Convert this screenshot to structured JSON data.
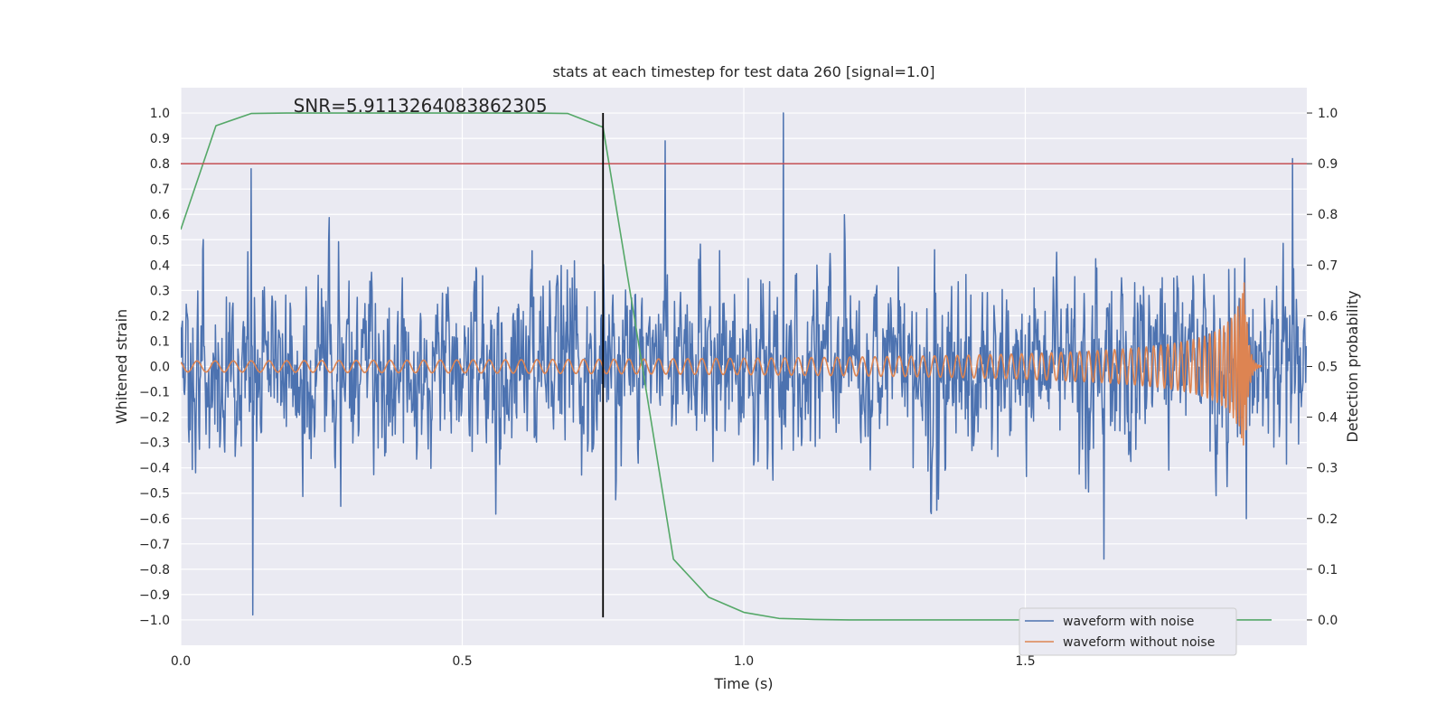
{
  "chart_data": {
    "type": "line",
    "title": "stats at each timestep for test data 260 [signal=1.0]",
    "xlabel": "Time (s)",
    "ylabel": "Whitened strain",
    "y2label": "Detection probability",
    "annotation": "SNR=5.9113264083862305",
    "xlim": [
      0.0,
      2.0
    ],
    "ylim": [
      -1.1,
      1.1
    ],
    "y2lim": [
      -0.05,
      1.05
    ],
    "xticks": [
      "0.0",
      "0.5",
      "1.0",
      "1.5"
    ],
    "xtick_values": [
      0.0,
      0.5,
      1.0,
      1.5
    ],
    "yticks": [
      "1.0",
      "0.9",
      "0.8",
      "0.7",
      "0.6",
      "0.5",
      "0.4",
      "0.3",
      "0.2",
      "0.1",
      "0.0",
      "−0.1",
      "−0.2",
      "−0.3",
      "−0.4",
      "−0.5",
      "−0.6",
      "−0.7",
      "−0.8",
      "−0.9",
      "−1.0"
    ],
    "ytick_values": [
      1.0,
      0.9,
      0.8,
      0.7,
      0.6,
      0.5,
      0.4,
      0.3,
      0.2,
      0.1,
      0.0,
      -0.1,
      -0.2,
      -0.3,
      -0.4,
      -0.5,
      -0.6,
      -0.7,
      -0.8,
      -0.9,
      -1.0
    ],
    "y2ticks": [
      "1.0",
      "0.9",
      "0.8",
      "0.7",
      "0.6",
      "0.5",
      "0.4",
      "0.3",
      "0.2",
      "0.1",
      "0.0"
    ],
    "y2tick_values": [
      1.0,
      0.9,
      0.8,
      0.7,
      0.6,
      0.5,
      0.4,
      0.3,
      0.2,
      0.1,
      0.0
    ],
    "grid": true,
    "legend_position": "lower-right",
    "series": [
      {
        "name": "waveform with noise",
        "color": "#4c72b0",
        "axis": "left",
        "kind": "noise",
        "sample_count": 2048,
        "amplitude_range": [
          -0.99,
          1.0
        ]
      },
      {
        "name": "waveform without noise",
        "color": "#dd8452",
        "axis": "left",
        "kind": "chirp",
        "peak_time": 1.89,
        "peak_amplitude": 0.35
      },
      {
        "name": "",
        "color": "#55a868",
        "axis": "right",
        "x": [
          0.0,
          0.0625,
          0.125,
          0.1875,
          0.25,
          0.3125,
          0.375,
          0.4375,
          0.5,
          0.5625,
          0.625,
          0.6875,
          0.75,
          0.8125,
          0.875,
          0.9375,
          1.0,
          1.0625,
          1.125,
          1.1875,
          1.25,
          1.3125,
          1.375,
          1.4375,
          1.5,
          1.5625,
          1.625,
          1.6875,
          1.75,
          1.8125,
          1.875,
          1.9375
        ],
        "y": [
          0.77,
          0.975,
          0.999,
          1.0,
          1.0,
          1.0,
          1.0,
          1.0,
          1.0,
          1.0,
          1.0,
          0.999,
          0.972,
          0.55,
          0.12,
          0.045,
          0.015,
          0.003,
          0.001,
          0.0,
          0.0,
          0.0,
          0.0,
          0.0,
          0.0,
          0.0,
          0.0,
          0.0,
          0.0,
          0.0,
          0.0,
          0.0
        ]
      }
    ],
    "hlines": [
      {
        "y": 0.8,
        "color": "#c44e52",
        "axis": "left"
      }
    ],
    "vlines": [
      {
        "x": 0.75,
        "y_from": -0.99,
        "y_to": 1.0,
        "color": "#000000"
      }
    ]
  }
}
